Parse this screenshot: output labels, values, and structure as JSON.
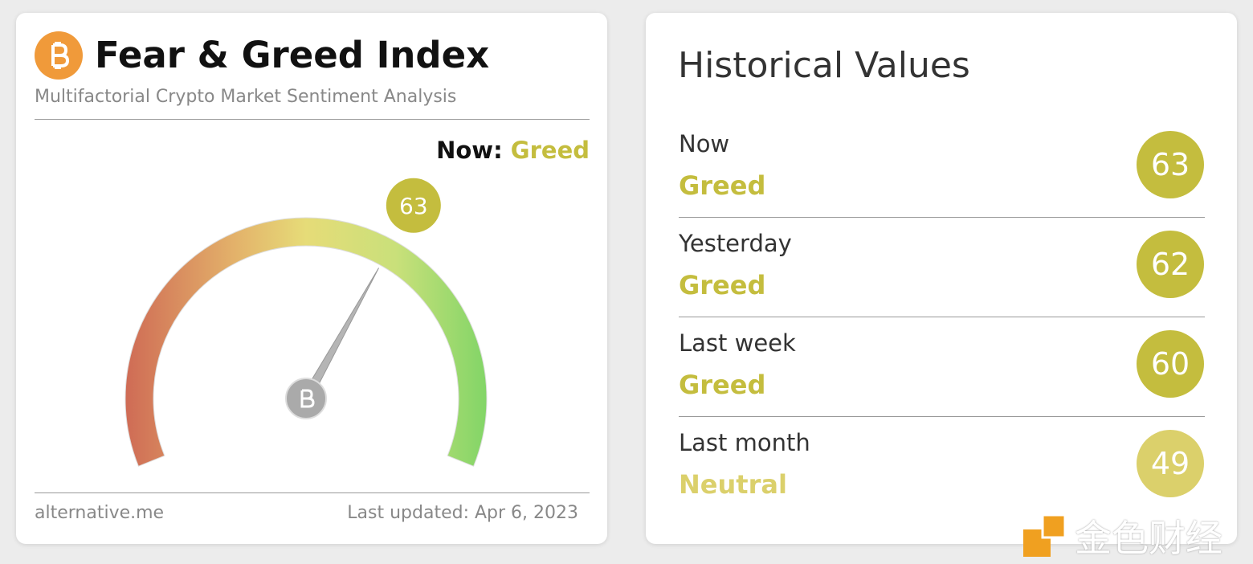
{
  "header": {
    "title": "Fear & Greed Index",
    "subtitle": "Multifactorial Crypto Market Sentiment Analysis"
  },
  "gauge": {
    "now_label": "Now:",
    "classification": "Greed",
    "value": 63,
    "color": "#c4bd3e"
  },
  "footer": {
    "source": "alternative.me",
    "updated": "Last updated: Apr 6, 2023"
  },
  "history": {
    "title": "Historical Values",
    "rows": [
      {
        "label": "Now",
        "classification": "Greed",
        "value": 63,
        "color": "#c4bd3e"
      },
      {
        "label": "Yesterday",
        "classification": "Greed",
        "value": 62,
        "color": "#c4bd3e"
      },
      {
        "label": "Last week",
        "classification": "Greed",
        "value": 60,
        "color": "#c4bd3e"
      },
      {
        "label": "Last month",
        "classification": "Neutral",
        "value": 49,
        "color": "#dbd06b"
      }
    ]
  },
  "watermark": "金色财经"
}
